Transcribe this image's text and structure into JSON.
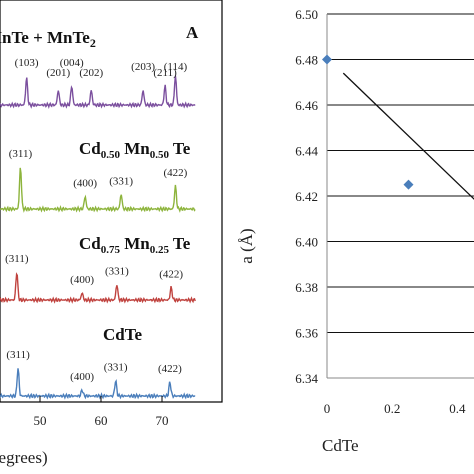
{
  "chart_data": [
    {
      "panel": "A",
      "type": "line",
      "title": "A",
      "xlabel": "θ (degrees)",
      "xlim": [
        40,
        75
      ],
      "xticks": [
        50,
        60,
        70
      ],
      "series": [
        {
          "name": "MnTe + MnTe2",
          "color": "#7b4f9e",
          "peaks": [
            {
              "x": 40.5,
              "h": 0.85,
              "label": "10)"
            },
            {
              "x": 47.8,
              "h": 0.65,
              "label": "(103)"
            },
            {
              "x": 53.0,
              "h": 0.35,
              "label": "(201)"
            },
            {
              "x": 55.2,
              "h": 0.45,
              "label": "(004)"
            },
            {
              "x": 58.4,
              "h": 0.35,
              "label": "(202)"
            },
            {
              "x": 66.9,
              "h": 0.35,
              "label": "(203)"
            },
            {
              "x": 70.5,
              "h": 0.45,
              "label": "(211)"
            },
            {
              "x": 72.2,
              "h": 0.7,
              "label": "(114)"
            }
          ]
        },
        {
          "name": "Cd0.50 Mn0.50 Te",
          "color": "#8db43c",
          "peaks": [
            {
              "x": 46.8,
              "h": 1.0,
              "label": "(311)"
            },
            {
              "x": 57.4,
              "h": 0.3,
              "label": "(400)"
            },
            {
              "x": 63.3,
              "h": 0.35,
              "label": "(331)"
            },
            {
              "x": 72.2,
              "h": 0.55,
              "label": "(422)"
            }
          ]
        },
        {
          "name": "Cd0.75 Mn0.25 Te",
          "color": "#c0433f",
          "peaks": [
            {
              "x": 46.2,
              "h": 1.0,
              "label": "(311)"
            },
            {
              "x": 56.9,
              "h": 0.25,
              "label": "(400)"
            },
            {
              "x": 62.6,
              "h": 0.55,
              "label": "(331)"
            },
            {
              "x": 71.5,
              "h": 0.45,
              "label": "(422)"
            }
          ]
        },
        {
          "name": "CdTe",
          "color": "#4a7ebb",
          "peaks": [
            {
              "x": 46.4,
              "h": 1.0,
              "label": "(311)"
            },
            {
              "x": 56.9,
              "h": 0.22,
              "label": "(400)"
            },
            {
              "x": 62.4,
              "h": 0.55,
              "label": "(331)"
            },
            {
              "x": 71.3,
              "h": 0.5,
              "label": "(422)"
            }
          ]
        }
      ]
    },
    {
      "panel": "B",
      "type": "scatter",
      "ylabel": "a (Å)",
      "xlabel": "CdTe",
      "xlim": [
        0,
        0.55
      ],
      "ylim": [
        6.34,
        6.5
      ],
      "xticks": [
        0,
        0.2,
        0.4
      ],
      "xtick_labels": [
        "0",
        "0.2",
        "0.4"
      ],
      "yticks": [
        6.34,
        6.36,
        6.38,
        6.4,
        6.42,
        6.44,
        6.46,
        6.48,
        6.5
      ],
      "ytick_labels": [
        "6.34",
        "6.36",
        "6.38",
        "6.40",
        "6.42",
        "6.44",
        "6.46",
        "6.48",
        "6.50"
      ],
      "grid": "horizontal",
      "points": [
        {
          "x": 0,
          "y": 6.48
        },
        {
          "x": 0.25,
          "y": 6.425
        }
      ],
      "marker_color": "#4a7ebb",
      "trend_line": {
        "x": [
          0.05,
          0.55
        ],
        "y": [
          6.474,
          6.405
        ]
      }
    }
  ]
}
